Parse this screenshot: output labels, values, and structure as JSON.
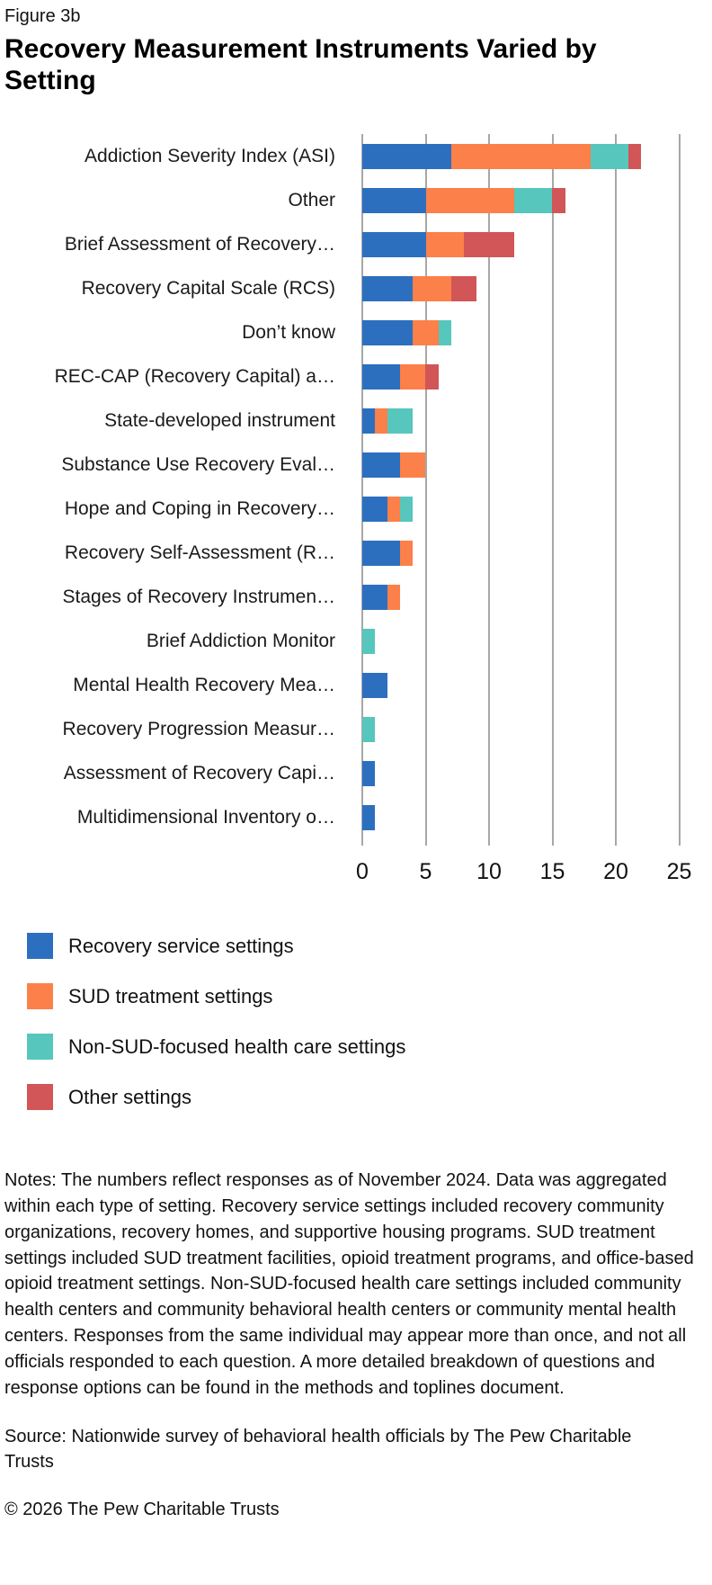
{
  "figure_label": "Figure 3b",
  "title": "Recovery Measurement Instruments Varied by Setting",
  "colors": {
    "recovery_service": "#2D6FBF",
    "sud_treatment": "#FC8049",
    "non_sud_health_care": "#57C6BD",
    "other_settings": "#D25558",
    "gridline": "#A7A7A7"
  },
  "chart_data": {
    "type": "bar",
    "orientation": "horizontal",
    "stacked": true,
    "title": "Recovery Measurement Instruments Varied by Setting",
    "xlabel": "",
    "ylabel": "",
    "xlim": [
      0,
      26.3
    ],
    "x_ticks": [
      0,
      5,
      10,
      15,
      20,
      25
    ],
    "grid": true,
    "legend_position": "bottom",
    "categories": [
      "Addiction Severity Index (ASI)",
      "Other",
      "Brief Assessment of Recovery…",
      "Recovery Capital Scale (RCS)",
      "Don’t know",
      "REC-CAP (Recovery Capital) a…",
      "State-developed instrument",
      "Substance Use Recovery Eval…",
      "Hope and Coping in Recovery…",
      "Recovery Self-Assessment (R…",
      "Stages of Recovery Instrumen…",
      "Brief Addiction Monitor",
      "Mental Health Recovery Mea…",
      "Recovery Progression Measur…",
      "Assessment of Recovery Capi…",
      "Multidimensional Inventory o…"
    ],
    "series": [
      {
        "name": "Recovery service settings",
        "color": "#2D6FBF",
        "values": [
          7,
          5,
          5,
          4,
          4,
          3,
          1,
          3,
          2,
          3,
          2,
          0,
          2,
          0,
          1,
          1
        ]
      },
      {
        "name": "SUD treatment settings",
        "color": "#FC8049",
        "values": [
          11,
          7,
          3,
          3,
          2,
          2,
          1,
          2,
          1,
          1,
          1,
          0,
          0,
          0,
          0,
          0
        ]
      },
      {
        "name": "Non-SUD-focused health care settings",
        "color": "#57C6BD",
        "values": [
          3,
          3,
          0,
          0,
          1,
          0,
          2,
          0,
          1,
          0,
          0,
          1,
          0,
          1,
          0,
          0
        ]
      },
      {
        "name": "Other settings",
        "color": "#D25558",
        "values": [
          1,
          1,
          4,
          2,
          0,
          1,
          0,
          0,
          0,
          0,
          0,
          0,
          0,
          0,
          0,
          0
        ]
      }
    ]
  },
  "legend": {
    "items": [
      {
        "label": "Recovery service settings",
        "color": "#2D6FBF"
      },
      {
        "label": "SUD treatment settings",
        "color": "#FC8049"
      },
      {
        "label": "Non-SUD-focused health care settings",
        "color": "#57C6BD"
      },
      {
        "label": "Other settings",
        "color": "#D25558"
      }
    ]
  },
  "notes": "Notes: The numbers reflect responses as of November 2024. Data was aggregated within each type of setting. Recovery service settings included recovery community organizations, recovery homes, and supportive housing programs. SUD treatment settings included SUD treatment facilities, opioid treatment programs, and office-based opioid treatment settings. Non-SUD-focused health care settings included community health centers and community behavioral health centers or community mental health centers. Responses from the same individual may appear more than once, and not all officials responded to each question. A more detailed breakdown of questions and response options can be found in the methods and toplines document.",
  "source": "Source: Nationwide survey of behavioral health officials by The Pew Charitable Trusts",
  "copyright": "© 2026 The Pew Charitable Trusts"
}
